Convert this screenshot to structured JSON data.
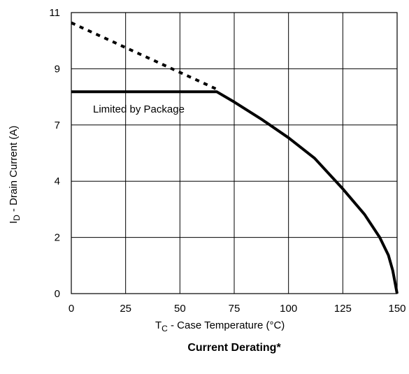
{
  "chart_data": {
    "type": "line",
    "title": "Current Derating*",
    "xlabel": {
      "main": "T",
      "sub": "C",
      "rest": " - Case Temperature (°C)"
    },
    "ylabel": {
      "main": "I",
      "sub": "D",
      "rest": " - Drain Current (A)"
    },
    "xlim": [
      0,
      150
    ],
    "ylim": [
      0,
      11
    ],
    "x_ticks": [
      "0",
      "25",
      "50",
      "75",
      "100",
      "125",
      "150"
    ],
    "y_ticks": [
      "0",
      "2",
      "4",
      "7",
      "9",
      "11"
    ],
    "grid": true,
    "annotation": "Limited by Package",
    "series": [
      {
        "style": "dashed",
        "x": [
          0,
          67
        ],
        "y": [
          10.6,
          8.0
        ]
      },
      {
        "style": "solid",
        "x": [
          0,
          67,
          75,
          88,
          100,
          112,
          125,
          135,
          142,
          146,
          148,
          150
        ],
        "y": [
          7.9,
          7.9,
          7.5,
          6.8,
          6.1,
          5.3,
          4.1,
          3.1,
          2.2,
          1.5,
          0.9,
          0.0
        ]
      }
    ]
  }
}
